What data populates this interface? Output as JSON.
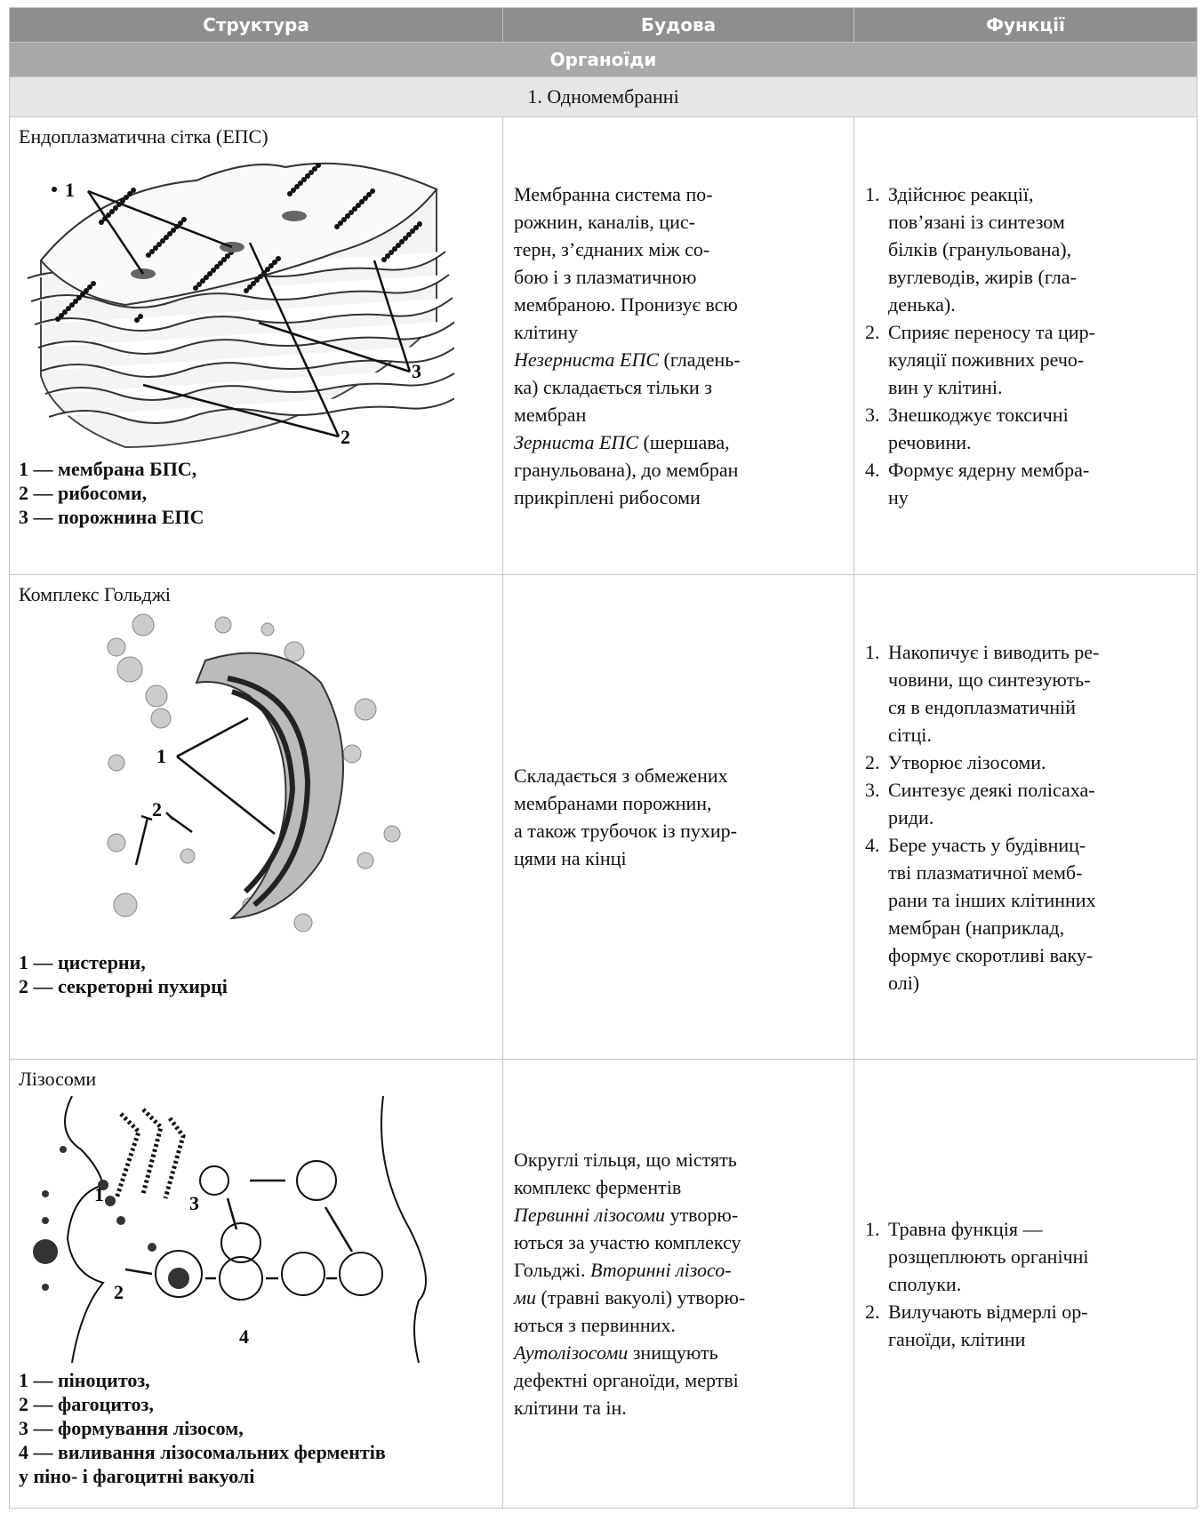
{
  "header": [
    "Структура",
    "Будова",
    "Функції"
  ],
  "section": "Органоїди",
  "subsection": "1. Одномембранні",
  "rows": [
    {
      "title": "Ендоплазматична сітка (ЕПС)",
      "figure_labels": [
        "1",
        "2",
        "3"
      ],
      "caption": [
        "1 — мембрана БПС,",
        "2 — рибосоми,",
        "3 — порожнина ЕПС"
      ],
      "description": [
        "Мембранна система по-",
        "рожнин, каналів, цис-",
        "терн, з’єднаних між со-",
        "бою і з плазматичною",
        "мембраною. Пронизує всю",
        "клітину",
        [
          {
            "t": "Незерниста ЕПС",
            "em": true
          },
          {
            "t": " (гладень-"
          }
        ],
        "ка) складається тільки з",
        "мембран",
        [
          {
            "t": "Зерниста ЕПС",
            "em": true
          },
          {
            "t": " (шершава,"
          }
        ],
        "гранульована), до мембран",
        "прикріплені рибосоми"
      ],
      "functions": [
        {
          "num": "1.",
          "lines": [
            "Здійснює реакції,",
            "пов’язані із синтезом",
            "білків (гранульована),",
            "вуглеводів, жирів (гла-",
            "денька)."
          ]
        },
        {
          "num": "2.",
          "lines": [
            "Сприяє переносу та цир-",
            "куляції поживних речо-",
            "вин у клітині."
          ]
        },
        {
          "num": "3.",
          "lines": [
            "Знешкоджує токсичні",
            "речовини."
          ]
        },
        {
          "num": "4.",
          "lines": [
            "Формує ядерну мембра-",
            "ну"
          ]
        }
      ]
    },
    {
      "title": "Комплекс Гольджі",
      "figure_labels": [
        "1",
        "2"
      ],
      "caption": [
        "1 — цистерни,",
        "2 — секреторні пухирці"
      ],
      "description": [
        "Складається з обмежених",
        "мембранами порожнин,",
        "а також трубочок із пухир-",
        "цями на кінці"
      ],
      "functions": [
        {
          "num": "1.",
          "lines": [
            "Накопичує і виводить ре-",
            "човини, що синтезують-",
            "ся в ендоплазматичній",
            "сітці."
          ]
        },
        {
          "num": "2.",
          "lines": [
            "Утворює лізосоми."
          ]
        },
        {
          "num": "3.",
          "lines": [
            "Синтезує деякі полісаха-",
            "риди."
          ]
        },
        {
          "num": "4.",
          "lines": [
            "Бере участь у будівниц-",
            "тві плазматичної мемб-",
            "рани та інших клітинних",
            "мембран (наприклад,",
            "формує скоротливі ваку-",
            "олі)"
          ]
        }
      ]
    },
    {
      "title": "Лізосоми",
      "figure_labels": [
        "1",
        "2",
        "3",
        "4"
      ],
      "caption": [
        "1 — піноцитоз,",
        "2 — фагоцитоз,",
        "3 — формування лізосом,",
        "4 — виливання лізосомальних ферментів",
        "у піно- і фагоцитні вакуолі"
      ],
      "description": [
        "Округлі тільця, що містять",
        "комплекс ферментів",
        [
          {
            "t": "Первинні лізосоми",
            "em": true
          },
          {
            "t": " утворю-"
          }
        ],
        "ються за участю комплексу",
        [
          {
            "t": "Гольджі. "
          },
          {
            "t": "Вторинні лізосо-",
            "em": true
          }
        ],
        [
          {
            "t": "ми",
            "em": true
          },
          {
            "t": " (травні вакуолі) утворю-"
          }
        ],
        "ються з первинних.",
        [
          {
            "t": "Аутолізосоми",
            "em": true
          },
          {
            "t": " знищують"
          }
        ],
        "дефектні органоїди, мертві",
        "клітини та ін."
      ],
      "functions": [
        {
          "num": "1.",
          "lines": [
            "Травна функція —",
            "розщеплюють органічні",
            "сполуки."
          ]
        },
        {
          "num": "2.",
          "lines": [
            "Вилучають відмерлі ор-",
            "ганоїди, клітини"
          ]
        }
      ]
    }
  ]
}
